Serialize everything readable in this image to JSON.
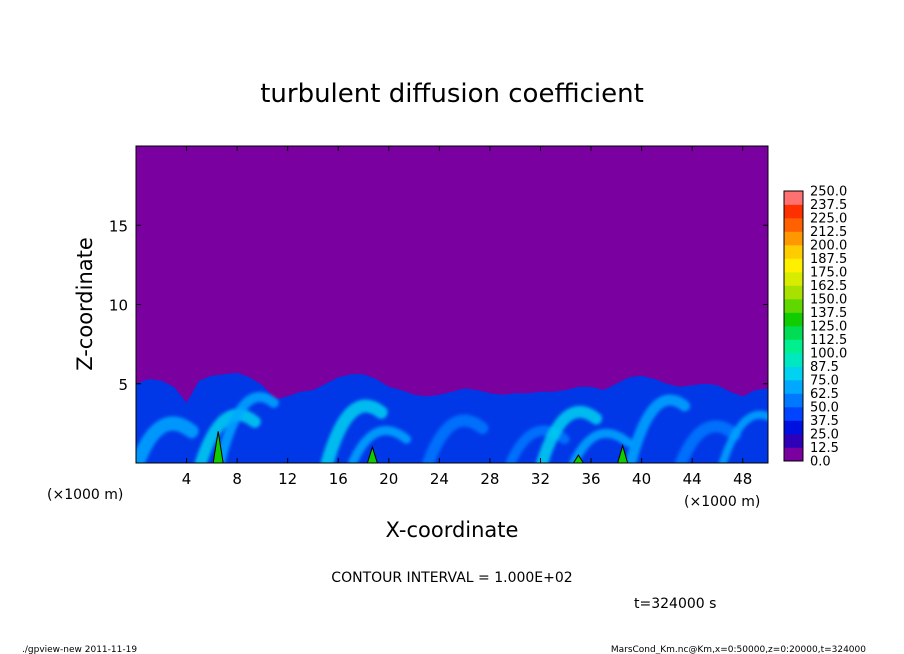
{
  "chart_data": {
    "type": "heatmap",
    "title": "turbulent diffusion coefficient",
    "xlabel": "X-coordinate",
    "ylabel": "Z-coordinate",
    "x_unit_label": "(×1000 m)",
    "y_unit_label": "(×1000 m)",
    "xlim": [
      0,
      50
    ],
    "ylim": [
      0,
      20
    ],
    "x_ticks": [
      4,
      8,
      12,
      16,
      20,
      24,
      28,
      32,
      36,
      40,
      44,
      48
    ],
    "y_ticks": [
      5,
      10,
      15
    ],
    "x_tick_labels": [
      "4",
      "8",
      "12",
      "16",
      "20",
      "24",
      "28",
      "32",
      "36",
      "40",
      "44",
      "48"
    ],
    "y_tick_labels": [
      "5",
      "10",
      "15"
    ],
    "background_level": 0.0,
    "boundary_layer_top_km": [
      [
        0,
        5.0
      ],
      [
        1,
        5.3
      ],
      [
        2,
        5.2
      ],
      [
        3,
        4.8
      ],
      [
        4,
        3.8
      ],
      [
        5,
        5.2
      ],
      [
        6,
        5.5
      ],
      [
        7,
        5.6
      ],
      [
        8,
        5.7
      ],
      [
        9,
        5.4
      ],
      [
        10,
        4.9
      ],
      [
        11,
        4.0
      ],
      [
        12,
        4.2
      ],
      [
        13,
        4.5
      ],
      [
        14,
        4.6
      ],
      [
        15,
        5.0
      ],
      [
        16,
        5.4
      ],
      [
        17,
        5.6
      ],
      [
        18,
        5.6
      ],
      [
        19,
        5.3
      ],
      [
        20,
        4.8
      ],
      [
        21,
        4.6
      ],
      [
        22,
        4.3
      ],
      [
        23,
        4.2
      ],
      [
        24,
        4.3
      ],
      [
        25,
        4.5
      ],
      [
        26,
        4.7
      ],
      [
        27,
        4.6
      ],
      [
        28,
        4.4
      ],
      [
        29,
        4.3
      ],
      [
        30,
        4.4
      ],
      [
        31,
        4.4
      ],
      [
        32,
        4.5
      ],
      [
        33,
        4.5
      ],
      [
        34,
        4.6
      ],
      [
        35,
        4.8
      ],
      [
        36,
        4.8
      ],
      [
        37,
        4.6
      ],
      [
        38,
        5.0
      ],
      [
        39,
        5.4
      ],
      [
        40,
        5.5
      ],
      [
        41,
        5.3
      ],
      [
        42,
        5.0
      ],
      [
        43,
        4.8
      ],
      [
        44,
        4.9
      ],
      [
        45,
        5.0
      ],
      [
        46,
        4.9
      ],
      [
        47,
        4.5
      ],
      [
        48,
        4.2
      ],
      [
        49,
        4.6
      ],
      [
        50,
        4.7
      ]
    ],
    "plumes_above_100": [
      {
        "x": 6.5,
        "top_z": 2.0
      },
      {
        "x": 18.7,
        "top_z": 1.0
      },
      {
        "x": 35.0,
        "top_z": 0.5
      },
      {
        "x": 38.5,
        "top_z": 1.1
      }
    ],
    "colorbar": {
      "levels": [
        "0.0",
        "12.5",
        "25.0",
        "37.5",
        "50.0",
        "62.5",
        "75.0",
        "87.5",
        "100.0",
        "112.5",
        "125.0",
        "137.5",
        "150.0",
        "162.5",
        "175.0",
        "187.5",
        "200.0",
        "212.5",
        "225.0",
        "237.5",
        "250.0"
      ],
      "colors": [
        "#7a00a0",
        "#2e00b8",
        "#0010e0",
        "#0044ff",
        "#0078ff",
        "#00a8ff",
        "#00d2f0",
        "#00e8c0",
        "#00f090",
        "#00dd55",
        "#10cc00",
        "#60d800",
        "#a8e000",
        "#d8ec00",
        "#fff000",
        "#ffcc00",
        "#ff9800",
        "#ff6000",
        "#ff3000",
        "#ff7070"
      ]
    }
  },
  "annotations": {
    "contour_interval": "CONTOUR INTERVAL = 1.000E+02",
    "time": "t=324000 s"
  },
  "footer": {
    "left": "./gpview-new   2011-11-19",
    "right": "MarsCond_Km.nc@Km,x=0:50000,z=0:20000,t=324000"
  }
}
